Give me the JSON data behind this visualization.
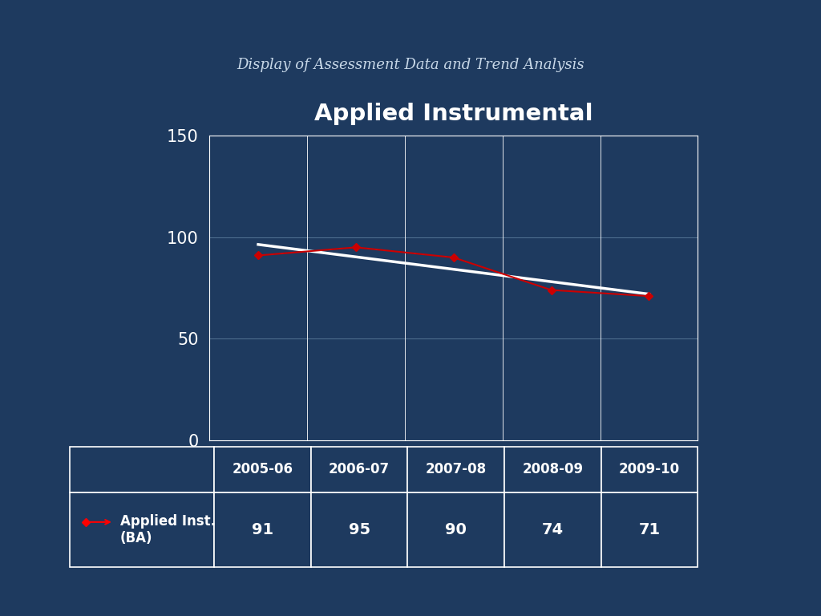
{
  "title_main": "Display of Assessment Data and Trend Analysis",
  "title_chart": "Applied Instrumental",
  "background_color": "#1e3a5f",
  "categories": [
    "2005-06",
    "2006-07",
    "2007-08",
    "2008-09",
    "2009-10"
  ],
  "values": [
    91,
    95,
    90,
    74,
    71
  ],
  "ylim": [
    0,
    150
  ],
  "yticks": [
    0,
    50,
    100,
    150
  ],
  "line_color": "#cc0000",
  "trend_color": "#ffffff",
  "marker": "D",
  "marker_size": 5,
  "series_label": "Applied Inst.\n(BA)",
  "main_title_color": "#c8d8e8",
  "chart_title_color": "#ffffff",
  "plot_bg_color": "#1e3a5f",
  "axis_color": "#ffffff",
  "tick_color": "#ffffff",
  "grid_color": "#5a7a9a",
  "xticklabel_color": "#ffffff",
  "table_bg_color": "#1e3a5f",
  "table_text_color": "#ffffff",
  "table_border_color": "#ffffff"
}
